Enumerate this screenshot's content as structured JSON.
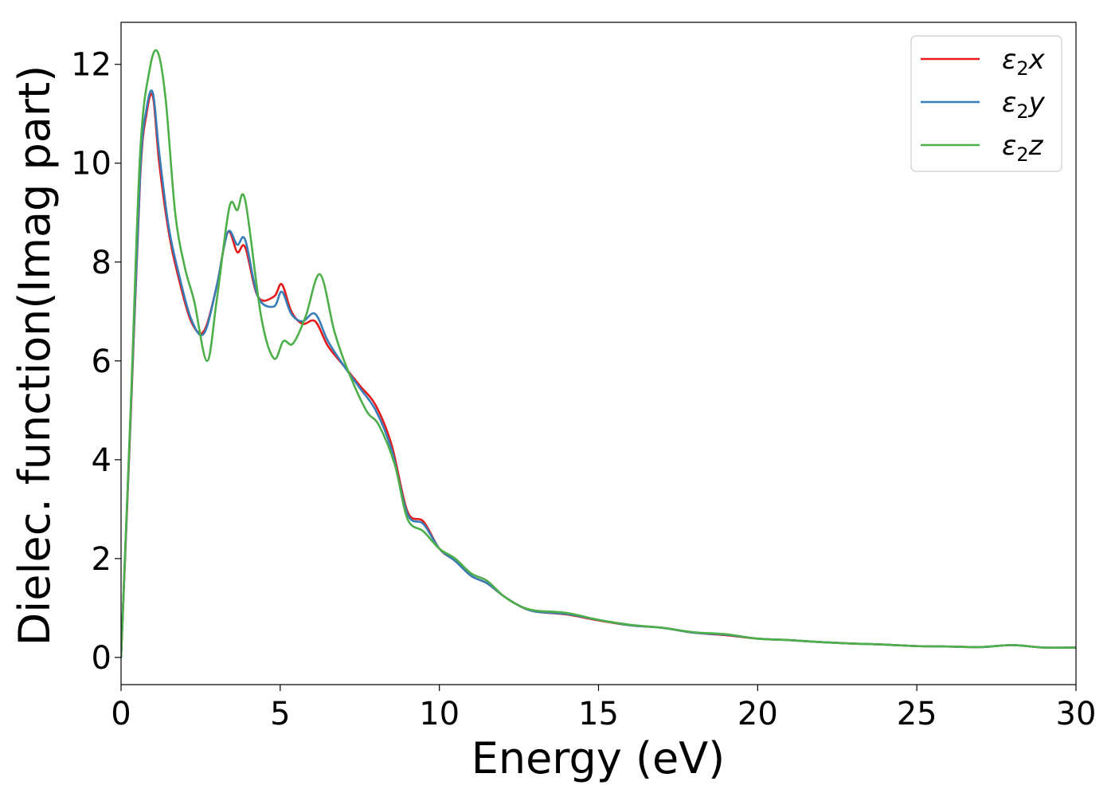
{
  "chart_data": {
    "type": "line",
    "xlabel": "Energy (eV)",
    "ylabel": "Dielec. function(Imag part)",
    "xlim": [
      0,
      30
    ],
    "ylim": [
      -0.55,
      12.85
    ],
    "xticks": [
      0,
      5,
      10,
      15,
      20,
      25,
      30
    ],
    "yticks": [
      0,
      2,
      4,
      6,
      8,
      10,
      12
    ],
    "grid": false,
    "legend_position": "top-right",
    "series": [
      {
        "name": "ε₂x",
        "legend": {
          "symbol": "ε",
          "sub": "2",
          "letter": "x"
        },
        "color": "#e41a1c",
        "x": [
          0,
          0.3,
          0.6,
          0.8,
          1.0,
          1.2,
          1.5,
          1.8,
          2.2,
          2.6,
          3.0,
          3.35,
          3.65,
          3.9,
          4.3,
          4.8,
          5.05,
          5.35,
          5.7,
          6.1,
          6.5,
          7.0,
          7.5,
          8.0,
          8.5,
          9.0,
          9.5,
          10.0,
          10.5,
          11.0,
          11.5,
          12.0,
          12.5,
          13.0,
          14.0,
          15.0,
          16.0,
          17.0,
          18.0,
          19.0,
          20.0,
          21.0,
          22.0,
          23.0,
          24.0,
          25.0,
          26.0,
          27.0,
          28.0,
          29.0,
          30.0
        ],
        "values": [
          0,
          4.8,
          9.7,
          11.0,
          11.35,
          10.0,
          8.6,
          7.7,
          6.8,
          6.6,
          7.5,
          8.6,
          8.2,
          8.3,
          7.3,
          7.3,
          7.55,
          7.0,
          6.75,
          6.8,
          6.3,
          5.9,
          5.5,
          5.1,
          4.3,
          2.95,
          2.75,
          2.2,
          1.95,
          1.65,
          1.5,
          1.25,
          1.05,
          0.93,
          0.87,
          0.75,
          0.65,
          0.6,
          0.5,
          0.45,
          0.38,
          0.35,
          0.31,
          0.28,
          0.26,
          0.23,
          0.22,
          0.21,
          0.25,
          0.2,
          0.2
        ]
      },
      {
        "name": "ε₂y",
        "legend": {
          "symbol": "ε",
          "sub": "2",
          "letter": "y"
        },
        "color": "#377eb8",
        "x": [
          0,
          0.3,
          0.6,
          0.8,
          1.0,
          1.2,
          1.5,
          1.8,
          2.2,
          2.6,
          3.0,
          3.35,
          3.65,
          3.9,
          4.3,
          4.8,
          5.05,
          5.35,
          5.7,
          6.1,
          6.5,
          7.0,
          7.5,
          8.0,
          8.5,
          9.0,
          9.5,
          10.0,
          10.5,
          11.0,
          11.5,
          12.0,
          12.5,
          13.0,
          14.0,
          15.0,
          16.0,
          17.0,
          18.0,
          19.0,
          20.0,
          21.0,
          22.0,
          23.0,
          24.0,
          25.0,
          26.0,
          27.0,
          28.0,
          29.0,
          30.0
        ],
        "values": [
          0,
          4.9,
          9.8,
          11.1,
          11.42,
          10.2,
          8.7,
          7.8,
          6.85,
          6.55,
          7.5,
          8.6,
          8.35,
          8.45,
          7.3,
          7.1,
          7.4,
          6.95,
          6.8,
          6.95,
          6.4,
          5.9,
          5.45,
          5.0,
          4.2,
          2.9,
          2.7,
          2.2,
          1.95,
          1.65,
          1.5,
          1.25,
          1.05,
          0.93,
          0.88,
          0.76,
          0.65,
          0.6,
          0.5,
          0.46,
          0.38,
          0.35,
          0.31,
          0.28,
          0.26,
          0.23,
          0.22,
          0.21,
          0.25,
          0.2,
          0.2
        ]
      },
      {
        "name": "ε₂z",
        "legend": {
          "symbol": "ε",
          "sub": "2",
          "letter": "z"
        },
        "color": "#4daf4a",
        "x": [
          0,
          0.3,
          0.6,
          0.9,
          1.15,
          1.4,
          1.7,
          2.0,
          2.3,
          2.7,
          3.0,
          3.4,
          3.65,
          3.9,
          4.4,
          4.8,
          5.1,
          5.4,
          5.8,
          6.25,
          6.7,
          7.1,
          7.7,
          8.1,
          8.6,
          9.0,
          9.5,
          10.0,
          10.5,
          11.0,
          11.5,
          12.0,
          12.5,
          13.0,
          14.0,
          15.0,
          16.0,
          17.0,
          18.0,
          19.0,
          20.0,
          21.0,
          22.0,
          23.0,
          24.0,
          25.0,
          26.0,
          27.0,
          28.0,
          29.0,
          30.0
        ],
        "values": [
          0,
          5.0,
          10.2,
          11.9,
          12.25,
          11.3,
          9.0,
          7.9,
          7.2,
          6.0,
          7.2,
          9.1,
          9.05,
          9.25,
          6.9,
          6.05,
          6.4,
          6.35,
          6.9,
          7.75,
          6.6,
          5.85,
          5.0,
          4.7,
          3.9,
          2.8,
          2.55,
          2.2,
          2.0,
          1.7,
          1.55,
          1.25,
          1.05,
          0.95,
          0.9,
          0.76,
          0.66,
          0.6,
          0.51,
          0.47,
          0.38,
          0.35,
          0.31,
          0.28,
          0.26,
          0.23,
          0.22,
          0.21,
          0.25,
          0.2,
          0.2
        ]
      }
    ]
  }
}
